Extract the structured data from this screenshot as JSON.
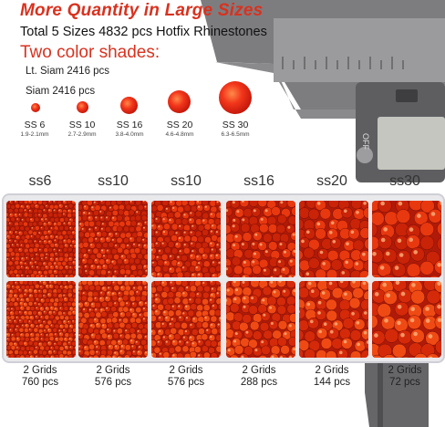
{
  "header": {
    "headline": "More Quantity in Large Sizes",
    "subline": "Total 5 Sizes 4832 pcs Hotfix Rhinestones",
    "shades_title": "Two color shades:",
    "shade_1": "Lt. Siam 2416 pcs",
    "shade_2": "Siam 2416 pcs"
  },
  "sizes": [
    {
      "name": "SS 6",
      "range": "1.9-2.1mm"
    },
    {
      "name": "SS 10",
      "range": "2.7-2.9mm"
    },
    {
      "name": "SS 16",
      "range": "3.8-4.0mm"
    },
    {
      "name": "SS 20",
      "range": "4.6-4.8mm"
    },
    {
      "name": "SS 30",
      "range": "6.3-6.5mm"
    }
  ],
  "columns": [
    "ss6",
    "ss10",
    "ss10",
    "ss16",
    "ss20",
    "ss30"
  ],
  "footer": [
    {
      "grids": "2 Grids",
      "pcs": "760 pcs"
    },
    {
      "grids": "2 Grids",
      "pcs": "576 pcs"
    },
    {
      "grids": "2 Grids",
      "pcs": "576 pcs"
    },
    {
      "grids": "2 Grids",
      "pcs": "288 pcs"
    },
    {
      "grids": "2 Grids",
      "pcs": "144 pcs"
    },
    {
      "grids": "2 Grids",
      "pcs": "72 pcs"
    }
  ],
  "caliper": {
    "readout_label": "OFF"
  },
  "colors": {
    "accent": "#d8321f",
    "gem": "#e0300f"
  }
}
